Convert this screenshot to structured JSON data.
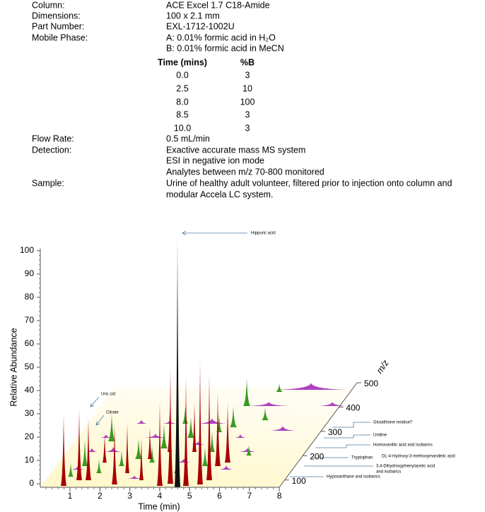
{
  "spec": [
    {
      "label": "Column:",
      "lines": [
        "ACE Excel 1.7 C18-Amide"
      ]
    },
    {
      "label": "Dimensions:",
      "lines": [
        "100 x 2.1 mm"
      ]
    },
    {
      "label": "Part Number:",
      "lines": [
        "EXL-1712-1002U"
      ]
    },
    {
      "label": "Mobile Phase:",
      "lines": [
        "A: 0.01% formic acid in H₂O",
        "B: 0.01% formic acid in MeCN"
      ]
    }
  ],
  "gradient": {
    "header": [
      "Time (mins)",
      "%B"
    ],
    "rows": [
      [
        "0.0",
        3
      ],
      [
        "2.5",
        10
      ],
      [
        "8.0",
        100
      ],
      [
        "8.5",
        3
      ],
      [
        "10.0",
        3
      ]
    ]
  },
  "spec2": [
    {
      "label": "Flow Rate:",
      "lines": [
        "0.5 mL/min"
      ]
    },
    {
      "label": "Detection:",
      "lines": [
        "Exactive accurate mass MS system",
        "ESI in negative ion mode",
        "Analytes between m/z 70-800 monitored"
      ]
    },
    {
      "label": "Sample:",
      "lines": [
        "Urine of healthy adult volunteer, filtered prior to injection onto column and",
        "modular Accela LC system."
      ]
    }
  ],
  "figure": {
    "y_label": "Relative Abundance",
    "x_label": "Time (min)",
    "z_label": "m/z",
    "yticks": [
      0,
      10,
      20,
      30,
      40,
      50,
      60,
      70,
      80,
      90,
      100
    ],
    "xticks": [
      1,
      2,
      3,
      4,
      5,
      6,
      7,
      8
    ],
    "zticks": [
      100,
      200,
      300,
      400,
      500
    ],
    "annotations": [
      "Hippuric acid",
      "Uric cid",
      "Citrate",
      "Glutathione residue?",
      "Uridine",
      "Homovanillic acid  and isobarics",
      "Tryptophan",
      "DL-4-Hydroxy-3-methoxymandelic acid",
      "3,4-Dihydroxyphenylacetic acid",
      "and isobarics",
      "Hypoxanthane and isobarics"
    ]
  }
}
